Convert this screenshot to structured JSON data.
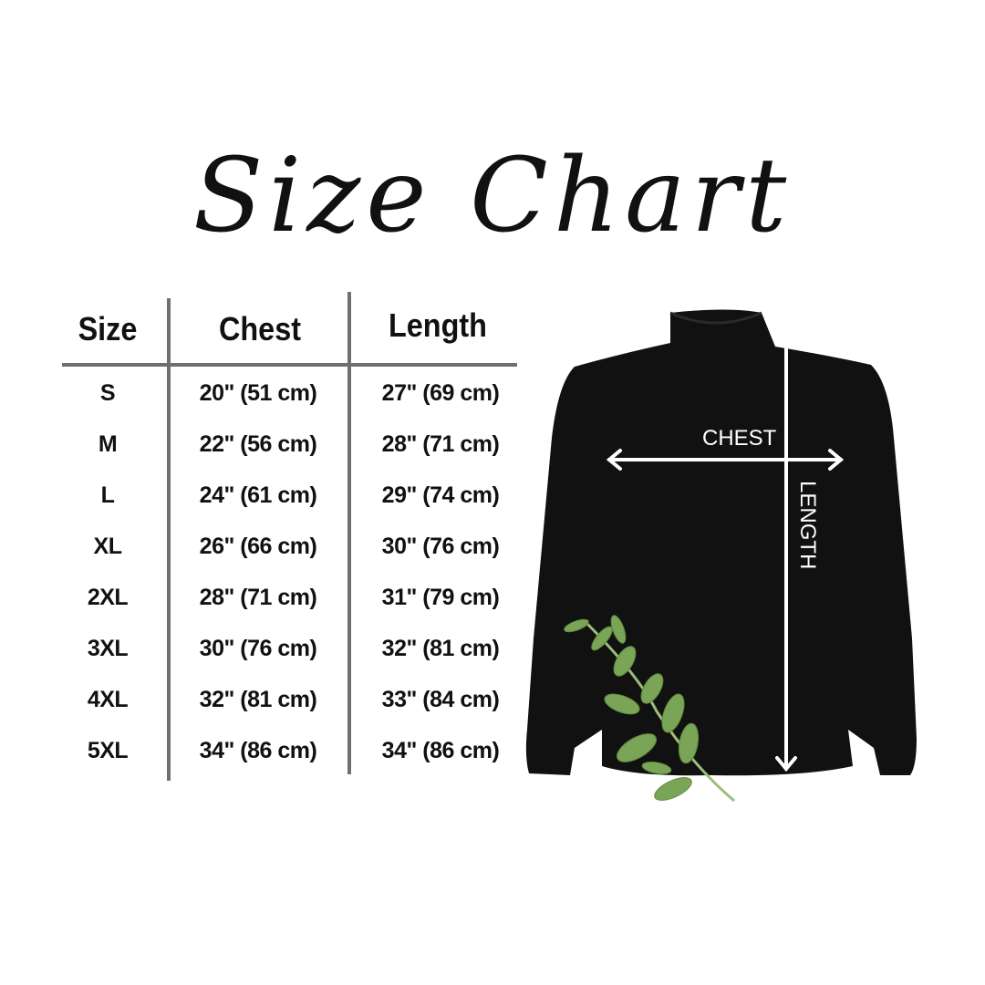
{
  "title": "Size Chart",
  "table": {
    "headers": [
      "Size",
      "Chest",
      "Length"
    ],
    "rows": [
      {
        "size": "S",
        "chest": "20\" (51 cm)",
        "length": "27\" (69 cm)"
      },
      {
        "size": "M",
        "chest": "22\" (56 cm)",
        "length": "28\" (71 cm)"
      },
      {
        "size": "L",
        "chest": "24\" (61 cm)",
        "length": "29\" (74 cm)"
      },
      {
        "size": "XL",
        "chest": "26\" (66 cm)",
        "length": "30\" (76 cm)"
      },
      {
        "size": "2XL",
        "chest": "28\" (71 cm)",
        "length": "31\" (79 cm)"
      },
      {
        "size": "3XL",
        "chest": "30\" (76 cm)",
        "length": "32\" (81 cm)"
      },
      {
        "size": "4XL",
        "chest": "32\" (81 cm)",
        "length": "33\" (84 cm)"
      },
      {
        "size": "5XL",
        "chest": "34\" (86 cm)",
        "length": "34\" (86 cm)"
      }
    ]
  },
  "diagram": {
    "chest_label": "CHEST",
    "length_label": "LENGTH",
    "garment_color": "#111111",
    "leaf_color": "#7aa556"
  }
}
